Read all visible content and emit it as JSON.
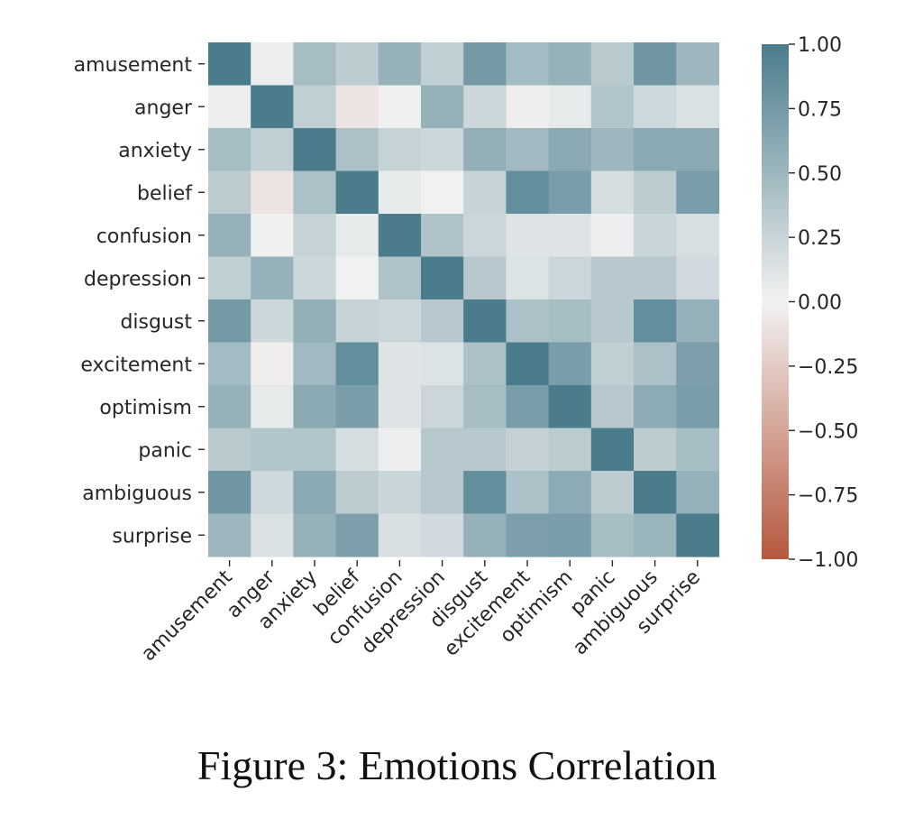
{
  "caption": "Figure 3: Emotions Correlation",
  "chart_data": {
    "type": "heatmap",
    "title": "",
    "labels": [
      "amusement",
      "anger",
      "anxiety",
      "belief",
      "confusion",
      "depression",
      "disgust",
      "excitement",
      "optimism",
      "panic",
      "ambiguous",
      "surprise"
    ],
    "matrix": [
      [
        1.0,
        0.04,
        0.45,
        0.32,
        0.55,
        0.3,
        0.75,
        0.47,
        0.55,
        0.34,
        0.78,
        0.5
      ],
      [
        0.04,
        1.0,
        0.3,
        -0.09,
        0.02,
        0.55,
        0.23,
        -0.03,
        0.07,
        0.38,
        0.22,
        0.14
      ],
      [
        0.45,
        0.3,
        1.0,
        0.42,
        0.27,
        0.23,
        0.57,
        0.48,
        0.62,
        0.5,
        0.62,
        0.62
      ],
      [
        0.32,
        -0.09,
        0.42,
        1.0,
        0.07,
        0.01,
        0.26,
        0.85,
        0.72,
        0.18,
        0.33,
        0.72
      ],
      [
        0.55,
        0.02,
        0.27,
        0.07,
        1.0,
        0.4,
        0.24,
        0.12,
        0.12,
        0.03,
        0.25,
        0.16
      ],
      [
        0.3,
        0.55,
        0.23,
        0.01,
        0.4,
        1.0,
        0.35,
        0.13,
        0.24,
        0.36,
        0.36,
        0.2
      ],
      [
        0.75,
        0.23,
        0.57,
        0.26,
        0.24,
        0.35,
        1.0,
        0.42,
        0.45,
        0.35,
        0.85,
        0.55
      ],
      [
        0.47,
        -0.03,
        0.48,
        0.85,
        0.12,
        0.13,
        0.42,
        1.0,
        0.72,
        0.3,
        0.42,
        0.7
      ],
      [
        0.55,
        0.07,
        0.62,
        0.72,
        0.12,
        0.24,
        0.45,
        0.72,
        1.0,
        0.35,
        0.6,
        0.72
      ],
      [
        0.34,
        0.38,
        0.38,
        0.18,
        0.03,
        0.36,
        0.35,
        0.28,
        0.33,
        1.0,
        0.33,
        0.45
      ],
      [
        0.78,
        0.22,
        0.62,
        0.33,
        0.25,
        0.36,
        0.85,
        0.42,
        0.6,
        0.33,
        1.0,
        0.55
      ],
      [
        0.5,
        0.14,
        0.55,
        0.7,
        0.16,
        0.2,
        0.55,
        0.7,
        0.72,
        0.45,
        0.52,
        1.0
      ]
    ],
    "colorbar": {
      "min": -1.0,
      "max": 1.0,
      "ticks": [
        "1.00",
        "0.75",
        "0.50",
        "0.25",
        "0.00",
        "−0.25",
        "−0.50",
        "−0.75",
        "−1.00"
      ],
      "low_color": "#b6573d",
      "mid_color": "#f2f2f2",
      "high_color": "#4a7c8c"
    },
    "xlabel": "",
    "ylabel": ""
  }
}
